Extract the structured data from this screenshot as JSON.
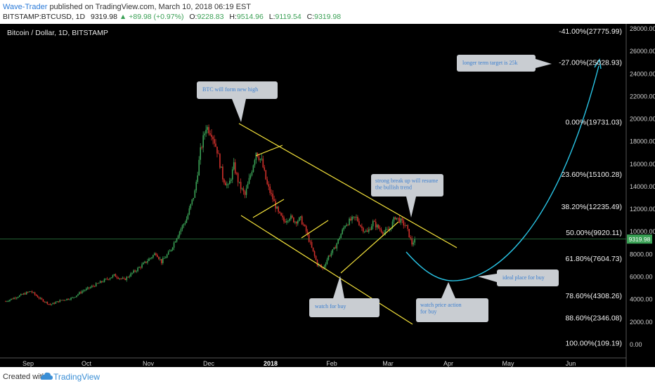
{
  "header": {
    "author": "Wave-Trader",
    "published_text": "published on TradingView.com, March 10, 2018 06:19 EST",
    "symbol": "BITSTAMP:BTCUSD, 1D",
    "price": "9319.98",
    "change": "+89.98 (+0.97%)",
    "o_label": "O:",
    "o_value": "9228.83",
    "h_label": "H:",
    "h_value": "9514.96",
    "l_label": "L:",
    "l_value": "9119.54",
    "c_label": "C:",
    "c_value": "9319.98"
  },
  "footer": {
    "created_with": "Created with",
    "brand": "TradingView"
  },
  "colors": {
    "background": "#000000",
    "up_candle": "#3aa055",
    "down_candle": "#d0302b",
    "channel": "#f5e33b",
    "projection": "#29c5e6",
    "price_line": "#3aa055",
    "axis_text": "#cfcfcf",
    "callout_bg": "#c9cdd2",
    "callout_text": "#3b7fd0"
  },
  "chart_data": {
    "type": "candlestick",
    "title": "Bitcoin / Dollar, 1D, BITSTAMP",
    "x_labels": [
      "Sep",
      "Oct",
      "Nov",
      "Dec",
      "2018",
      "Feb",
      "Mar",
      "Apr",
      "May",
      "Jun"
    ],
    "y_ticks": [
      "0.00",
      "2000.00",
      "4000.00",
      "6000.00",
      "8000.00",
      "10000.00",
      "12000.00",
      "14000.00",
      "16000.00",
      "18000.00",
      "20000.00",
      "22000.00",
      "24000.00",
      "26000.00",
      "28000.00"
    ],
    "ylim": [
      -1000,
      28500
    ],
    "last_price": 9319.98,
    "last_price_label": "9319.98",
    "price_path": [
      [
        0,
        3800
      ],
      [
        10,
        4300
      ],
      [
        18,
        4700
      ],
      [
        25,
        4000
      ],
      [
        32,
        3500
      ],
      [
        40,
        3900
      ],
      [
        48,
        4100
      ],
      [
        55,
        4700
      ],
      [
        62,
        5100
      ],
      [
        70,
        5600
      ],
      [
        78,
        6100
      ],
      [
        85,
        5700
      ],
      [
        92,
        6400
      ],
      [
        100,
        7200
      ],
      [
        108,
        8100
      ],
      [
        112,
        7300
      ],
      [
        118,
        8200
      ],
      [
        124,
        9800
      ],
      [
        130,
        11100
      ],
      [
        136,
        13500
      ],
      [
        140,
        17100
      ],
      [
        144,
        19300
      ],
      [
        148,
        18800
      ],
      [
        152,
        17200
      ],
      [
        156,
        14800
      ],
      [
        160,
        13900
      ],
      [
        164,
        15800
      ],
      [
        168,
        14100
      ],
      [
        172,
        13200
      ],
      [
        176,
        15000
      ],
      [
        180,
        17100
      ],
      [
        184,
        16200
      ],
      [
        188,
        14100
      ],
      [
        192,
        12900
      ],
      [
        196,
        11600
      ],
      [
        200,
        10900
      ],
      [
        204,
        11300
      ],
      [
        208,
        10900
      ],
      [
        212,
        11100
      ],
      [
        216,
        10000
      ],
      [
        220,
        8500
      ],
      [
        224,
        7100
      ],
      [
        228,
        6700
      ],
      [
        232,
        7800
      ],
      [
        236,
        8400
      ],
      [
        240,
        9500
      ],
      [
        244,
        10600
      ],
      [
        248,
        11000
      ],
      [
        252,
        11200
      ],
      [
        256,
        10300
      ],
      [
        260,
        9900
      ],
      [
        264,
        10800
      ],
      [
        268,
        10300
      ],
      [
        272,
        9900
      ],
      [
        276,
        10200
      ],
      [
        280,
        11300
      ],
      [
        284,
        10900
      ],
      [
        288,
        10400
      ],
      [
        292,
        8900
      ],
      [
        294,
        9320
      ]
    ],
    "fib_levels": [
      {
        "label": "-41.00%(27775.99)",
        "value": 27775.99
      },
      {
        "label": "-27.00%(25028.93)",
        "value": 25028.93
      },
      {
        "label": "0.00%(19731.03)",
        "value": 19731.03
      },
      {
        "label": "23.60%(15100.28)",
        "value": 15100.28
      },
      {
        "label": "38.20%(12235.49)",
        "value": 12235.49
      },
      {
        "label": "50.00%(9920.11)",
        "value": 9920.11
      },
      {
        "label": "61.80%(7604.73)",
        "value": 7604.73
      },
      {
        "label": "78.60%(4308.26)",
        "value": 4308.26
      },
      {
        "label": "88.60%(2346.08)",
        "value": 2346.08
      },
      {
        "label": "100.00%(109.19)",
        "value": 109.19
      }
    ],
    "annotations": [
      {
        "text": "BTC will form new high"
      },
      {
        "text": "longer term target is 25k"
      },
      {
        "text": "strong break up will resume the bullish trend"
      },
      {
        "text": "ideal place for buy"
      },
      {
        "text": "watch for buy"
      },
      {
        "text": "watch price action for buy"
      }
    ]
  }
}
